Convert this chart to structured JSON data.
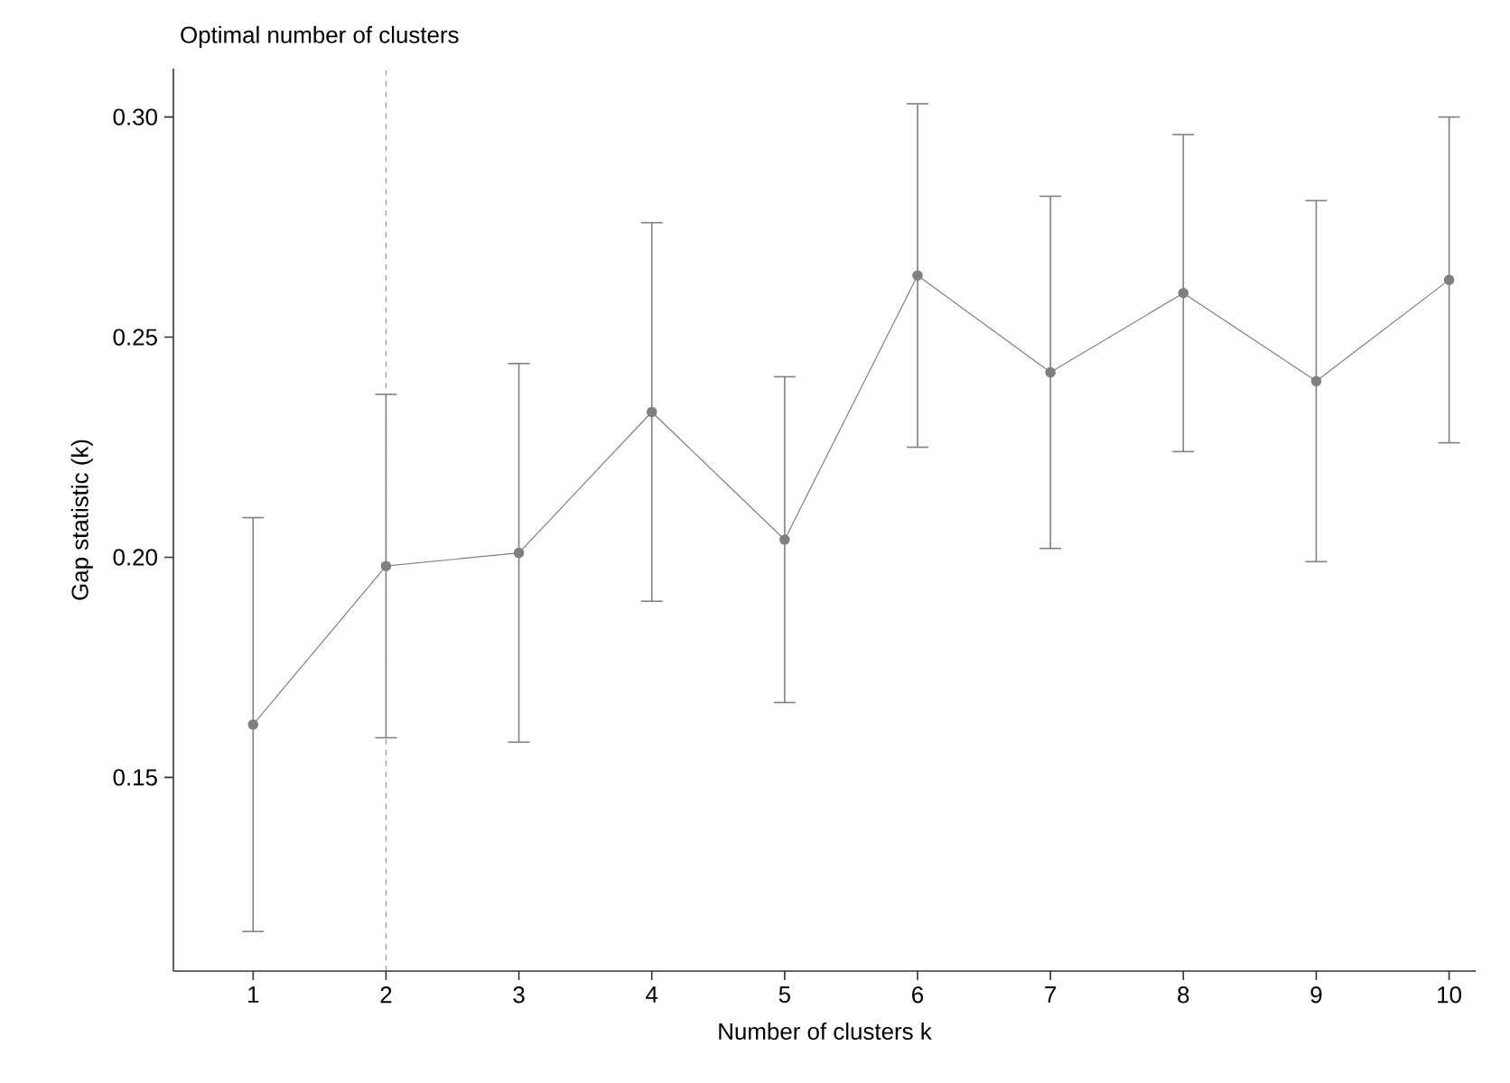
{
  "chart_data": {
    "type": "line",
    "title": "Optimal number of clusters",
    "xlabel": "Number of clusters k",
    "ylabel": "Gap statistic (k)",
    "x": [
      1,
      2,
      3,
      4,
      5,
      6,
      7,
      8,
      9,
      10
    ],
    "series": [
      {
        "color": "#808080",
        "values": [
          0.162,
          0.198,
          0.201,
          0.233,
          0.204,
          0.264,
          0.242,
          0.26,
          0.24,
          0.263
        ],
        "errors": [
          0.047,
          0.039,
          0.043,
          0.043,
          0.037,
          0.039,
          0.04,
          0.036,
          0.041,
          0.037
        ]
      }
    ],
    "xlim": [
      0.4,
      10.2
    ],
    "xticks": [
      1,
      2,
      3,
      4,
      5,
      6,
      7,
      8,
      9,
      10
    ],
    "ylim": [
      0.106,
      0.311
    ],
    "yticks": [
      {
        "value": 0.15,
        "label": "0.15"
      },
      {
        "value": 0.2,
        "label": "0.20"
      },
      {
        "value": 0.25,
        "label": "0.25"
      },
      {
        "value": 0.3,
        "label": "0.30"
      }
    ],
    "ref_lines": [
      {
        "axis": "x",
        "value": 2,
        "color": "#666666",
        "line_style": "dashed"
      }
    ],
    "grid": false,
    "marker": "circle",
    "line_style": "solid"
  }
}
